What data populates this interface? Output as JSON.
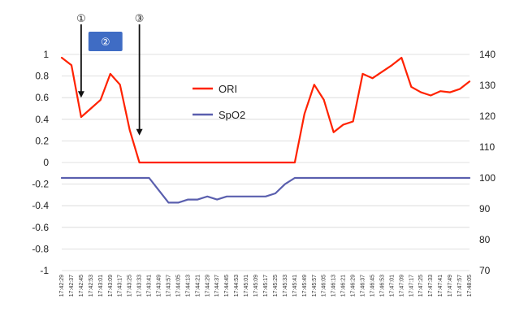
{
  "chart_data": {
    "type": "line",
    "title": "",
    "xlabel": "",
    "ylabel": "",
    "x": [
      "17:42:29",
      "17:42:37",
      "17:42:45",
      "17:42:53",
      "17:43:01",
      "17:43:09",
      "17:43:17",
      "17:43:25",
      "17:43:33",
      "17:43:41",
      "17:43:49",
      "17:43:57",
      "17:44:05",
      "17:44:13",
      "17:44:21",
      "17:44:29",
      "17:44:37",
      "17:44:45",
      "17:44:53",
      "17:45:01",
      "17:45:09",
      "17:45:17",
      "17:45:25",
      "17:45:33",
      "17:45:41",
      "17:45:49",
      "17:45:57",
      "17:46:05",
      "17:46:13",
      "17:46:21",
      "17:46:29",
      "17:46:37",
      "17:46:45",
      "17:46:53",
      "17:47:01",
      "17:47:09",
      "17:47:17",
      "17:47:25",
      "17:47:33",
      "17:47:41",
      "17:47:49",
      "17:47:57",
      "17:48:05"
    ],
    "ylim": [
      -1,
      1
    ],
    "yticks": [
      "1",
      "0.8",
      "0.6",
      "0.4",
      "0.2",
      "0",
      "-0.2",
      "-0.4",
      "-0.6",
      "-0.8",
      "-1"
    ],
    "y2lim": [
      70,
      140
    ],
    "y2ticks": [
      "140",
      "130",
      "120",
      "110",
      "100",
      "90",
      "80",
      "70"
    ],
    "grid": true,
    "legend_position": "center",
    "series": [
      {
        "name": "ORI",
        "axis": "left",
        "color": "#ff2200",
        "values": [
          0.97,
          0.9,
          0.42,
          0.5,
          0.58,
          0.82,
          0.72,
          0.3,
          0.0,
          0.0,
          0.0,
          0.0,
          0.0,
          0.0,
          0.0,
          0.0,
          0.0,
          0.0,
          0.0,
          0.0,
          0.0,
          0.0,
          0.0,
          0.0,
          0.0,
          0.45,
          0.72,
          0.58,
          0.28,
          0.35,
          0.38,
          0.82,
          0.78,
          0.84,
          0.9,
          0.97,
          0.7,
          0.65,
          0.62,
          0.66,
          0.65,
          0.68,
          0.75
        ]
      },
      {
        "name": "SpO2",
        "axis": "right",
        "color": "#5a5fae",
        "values": [
          100,
          100,
          100,
          100,
          100,
          100,
          100,
          100,
          100,
          100,
          96,
          92,
          92,
          93,
          93,
          94,
          93,
          94,
          94,
          94,
          94,
          94,
          95,
          98,
          100,
          100,
          100,
          100,
          100,
          100,
          100,
          100,
          100,
          100,
          100,
          100,
          100,
          100,
          100,
          100,
          100,
          100,
          100
        ]
      }
    ],
    "annotations": [
      {
        "label": "①",
        "kind": "arrow",
        "at_x": "17:42:45",
        "arrow_to_y": 0.6
      },
      {
        "label": "②",
        "kind": "box",
        "from_x": "17:42:53",
        "to_x": "17:43:17"
      },
      {
        "label": "③",
        "kind": "arrow",
        "at_x": "17:43:33",
        "arrow_to_y": 0.25
      }
    ]
  }
}
